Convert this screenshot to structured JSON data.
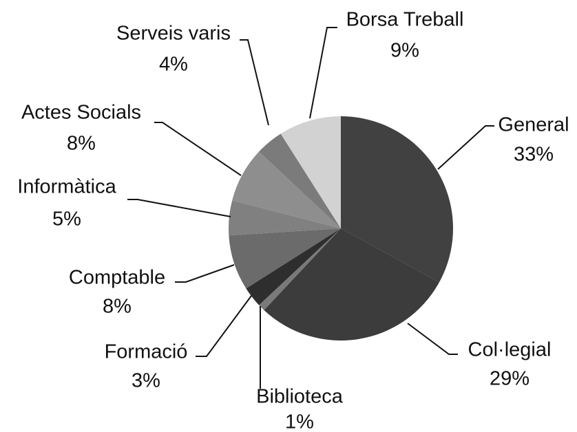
{
  "chart_data": {
    "type": "pie",
    "categories": [
      "General",
      "Col·legial",
      "Biblioteca",
      "Formació",
      "Comptable",
      "Informàtica",
      "Actes Socials",
      "Serveis varis",
      "Borsa Treball"
    ],
    "values": [
      33,
      29,
      1,
      3,
      8,
      5,
      8,
      4,
      9
    ],
    "value_labels": [
      "33%",
      "29%",
      "1%",
      "3%",
      "8%",
      "5%",
      "8%",
      "4%",
      "9%"
    ],
    "colors": [
      "#414141",
      "#3c3c3c",
      "#7a7a7a",
      "#2e2e2e",
      "#6b6b6b",
      "#808080",
      "#8e8e8e",
      "#7b7b7b",
      "#d2d2d2"
    ]
  }
}
